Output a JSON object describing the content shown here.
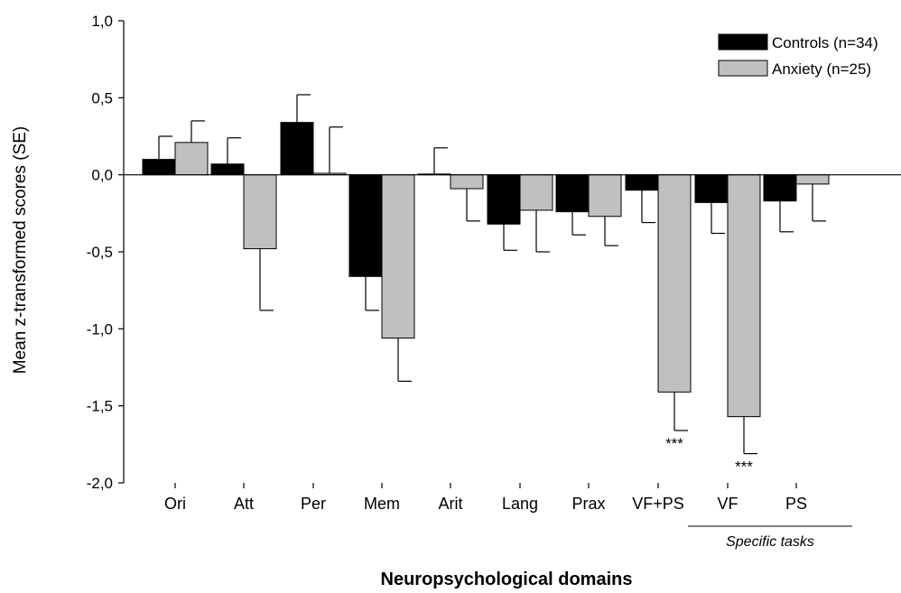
{
  "chart_data": {
    "type": "bar",
    "title": "",
    "xlabel": "Neuropsychological domains",
    "ylabel": "Mean z-transformed scores (SE)",
    "ylim": [
      -2.0,
      1.0
    ],
    "yticks": [
      "-2,0",
      "-1,5",
      "-1,0",
      "-0,5",
      "0,0",
      "0,5",
      "1,0"
    ],
    "ytick_values": [
      -2.0,
      -1.5,
      -1.0,
      -0.5,
      0.0,
      0.5,
      1.0
    ],
    "categories": [
      "Ori",
      "Att",
      "Per",
      "Mem",
      "Arit",
      "Lang",
      "Prax",
      "VF+PS",
      "VF",
      "PS"
    ],
    "series": [
      {
        "name": "Controls (n=34)",
        "color": "#000000",
        "values": [
          0.1,
          0.07,
          0.34,
          -0.66,
          0.005,
          -0.32,
          -0.24,
          -0.1,
          -0.18,
          -0.17
        ],
        "errors": [
          0.15,
          0.17,
          0.18,
          0.22,
          0.17,
          0.17,
          0.15,
          0.21,
          0.2,
          0.2
        ]
      },
      {
        "name": "Anxiety (n=25)",
        "color": "#c0c0c0",
        "values": [
          0.21,
          -0.48,
          0.01,
          -1.06,
          -0.09,
          -0.23,
          -0.27,
          -1.41,
          -1.57,
          -0.06
        ],
        "errors": [
          0.14,
          0.4,
          0.3,
          0.28,
          0.21,
          0.27,
          0.19,
          0.25,
          0.24,
          0.24
        ]
      }
    ],
    "annotations": [
      {
        "category": "VF+PS",
        "series": "Anxiety (n=25)",
        "text": "***"
      },
      {
        "category": "VF",
        "series": "Anxiety (n=25)",
        "text": "***"
      }
    ],
    "group_bracket": {
      "categories": [
        "VF",
        "PS"
      ],
      "label": "Specific tasks"
    },
    "legend_position": "top-right",
    "grid": false
  }
}
